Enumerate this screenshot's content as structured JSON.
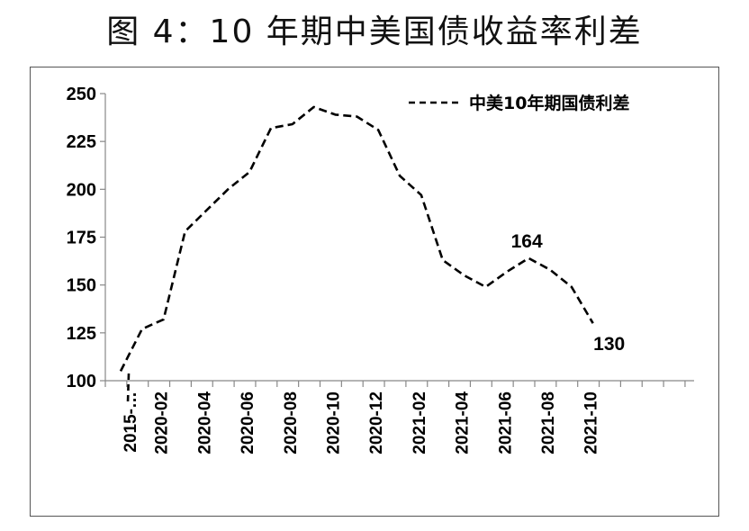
{
  "title": "图 4：10 年期中美国债收益率利差",
  "chart_data": {
    "type": "line",
    "title": "图 4：10 年期中美国债收益率利差",
    "xlabel": "",
    "ylabel": "",
    "ylim": [
      100,
      250
    ],
    "yticks": [
      100,
      125,
      150,
      175,
      200,
      225,
      250
    ],
    "x_tick_labels": [
      "2015-…",
      "2020-02",
      "2020-04",
      "2020-06",
      "2020-08",
      "2020-10",
      "2020-12",
      "2021-02",
      "2021-04",
      "2021-06",
      "2021-08",
      "2021-10"
    ],
    "legend": {
      "position": "top-right",
      "entry": "中美10年期国债利差"
    },
    "series": [
      {
        "name": "中美10年期国债利差",
        "style": "dashed",
        "color": "#000000",
        "values": [
          105,
          127,
          132,
          178,
          189,
          200,
          209,
          232,
          234,
          243,
          239,
          238,
          231,
          207,
          197,
          163,
          155,
          149,
          157,
          164,
          158,
          149,
          130
        ],
        "data_labels": [
          {
            "index": 19,
            "text": "164"
          },
          {
            "index": 22,
            "text": "130"
          }
        ]
      }
    ],
    "grid": false
  }
}
